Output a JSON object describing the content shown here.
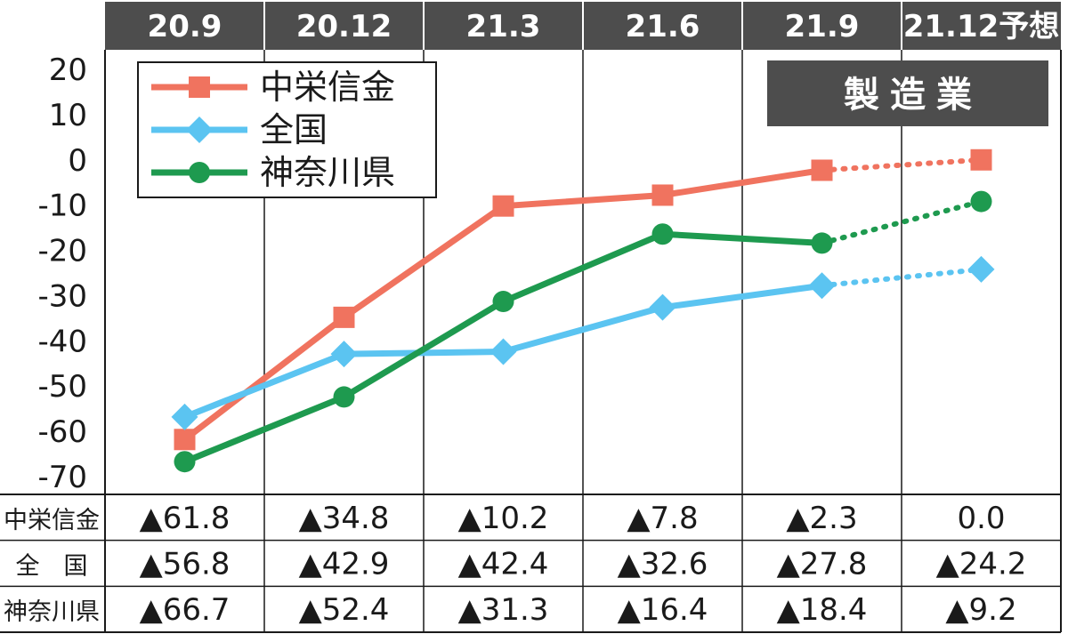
{
  "chart_data": {
    "type": "line",
    "title": "",
    "badge": "製造業",
    "categories": [
      "20.9",
      "20.12",
      "21.3",
      "21.6",
      "21.9",
      "21.12予想"
    ],
    "forecast_from_index": 4,
    "ylim": [
      -70,
      20
    ],
    "yticks": [
      "20",
      "10",
      "0",
      "-10",
      "-20",
      "-30",
      "-40",
      "-50",
      "-60",
      "-70"
    ],
    "legend_position": "top-left",
    "series": [
      {
        "name": "中栄信金",
        "values": [
          -61.8,
          -34.8,
          -10.2,
          -7.8,
          -2.3,
          0.0
        ],
        "color": "#f0735f",
        "marker": "square"
      },
      {
        "name": "全国",
        "values": [
          -56.8,
          -42.9,
          -42.4,
          -32.6,
          -27.8,
          -24.2
        ],
        "color": "#5bc4f1",
        "marker": "diamond"
      },
      {
        "name": "神奈川県",
        "values": [
          -66.7,
          -52.4,
          -31.3,
          -16.4,
          -18.4,
          -9.2
        ],
        "color": "#1e9a4f",
        "marker": "circle"
      }
    ],
    "table": {
      "rows": [
        {
          "label": "中栄信金",
          "cells": [
            "▲61.8",
            "▲34.8",
            "▲10.2",
            "▲7.8",
            "▲2.3",
            "0.0"
          ]
        },
        {
          "label": "全　国",
          "cells": [
            "▲56.8",
            "▲42.9",
            "▲42.4",
            "▲32.6",
            "▲27.8",
            "▲24.2"
          ]
        },
        {
          "label": "神奈川県",
          "cells": [
            "▲66.7",
            "▲52.4",
            "▲31.3",
            "▲16.4",
            "▲18.4",
            "▲9.2"
          ]
        }
      ]
    }
  },
  "colors": {
    "header_bg": "#4d4d4d",
    "badge_bg": "#4d4d4d",
    "grid": "#1a1a1a"
  }
}
